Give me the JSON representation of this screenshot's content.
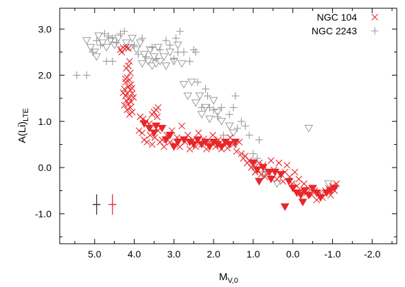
{
  "chart_data": {
    "type": "scatter",
    "title": "",
    "xlabel": "M",
    "xlabel_sub": "V,0",
    "ylabel": "A(Li)",
    "ylabel_sub": "LTE",
    "xlim": [
      5.88,
      -2.62
    ],
    "ylim": [
      -1.65,
      3.45
    ],
    "x_reversed": true,
    "x_ticks": [
      5,
      4,
      3,
      2,
      1,
      0,
      -1,
      -2
    ],
    "x_tick_labels": [
      "5.0",
      "4.0",
      "3.0",
      "2.0",
      "1.0",
      "0.0",
      "-1.0",
      "-2.0"
    ],
    "y_ticks": [
      3,
      2,
      1,
      0,
      -1
    ],
    "y_tick_labels": [
      "3.0",
      "2.0",
      "1.0",
      "0.0",
      "-1.0"
    ],
    "grid": false,
    "legend_position": "top-right",
    "series": [
      {
        "name": "NGC 104",
        "color": "#e8272a",
        "marker": "x",
        "upper_limit_marker": "filled-down-triangle",
        "points": [
          [
            4.32,
            2.5
          ],
          [
            4.35,
            2.55
          ],
          [
            4.28,
            2.6
          ],
          [
            4.2,
            2.6
          ],
          [
            4.15,
            2.58
          ],
          [
            4.12,
            2.3
          ],
          [
            4.15,
            2.2
          ],
          [
            4.2,
            2.15
          ],
          [
            4.1,
            2.05
          ],
          [
            4.18,
            1.95
          ],
          [
            4.12,
            1.9
          ],
          [
            4.22,
            1.85
          ],
          [
            4.08,
            1.8
          ],
          [
            4.15,
            1.75
          ],
          [
            4.25,
            1.7
          ],
          [
            4.1,
            1.68
          ],
          [
            4.18,
            1.6
          ],
          [
            4.05,
            1.6
          ],
          [
            4.22,
            1.55
          ],
          [
            4.12,
            1.5
          ],
          [
            4.2,
            1.45
          ],
          [
            4.08,
            1.42
          ],
          [
            4.15,
            1.38
          ],
          [
            4.25,
            1.35
          ],
          [
            4.1,
            1.3
          ],
          [
            4.18,
            1.25
          ],
          [
            4.05,
            1.2
          ],
          [
            4.12,
            1.15
          ],
          [
            4.22,
            1.92
          ],
          [
            4.06,
            1.72
          ],
          [
            4.28,
            1.62
          ],
          [
            4.02,
            1.52
          ],
          [
            3.85,
            1.1
          ],
          [
            3.78,
            1.05
          ],
          [
            3.7,
            1.0
          ],
          [
            3.62,
            0.95
          ],
          [
            3.55,
            1.15
          ],
          [
            3.5,
            1.2
          ],
          [
            3.45,
            1.25
          ],
          [
            3.4,
            1.3
          ],
          [
            3.42,
            1.1
          ],
          [
            3.88,
            0.8
          ],
          [
            3.8,
            0.75
          ],
          [
            3.75,
            0.6
          ],
          [
            3.68,
            0.55
          ],
          [
            3.6,
            0.7
          ],
          [
            3.55,
            0.5
          ],
          [
            3.48,
            0.65
          ],
          [
            3.4,
            0.8
          ],
          [
            3.35,
            0.55
          ],
          [
            3.3,
            0.6
          ],
          [
            3.25,
            0.45
          ],
          [
            3.18,
            0.7
          ],
          [
            3.1,
            0.55
          ],
          [
            3.05,
            0.8
          ],
          [
            2.98,
            0.5
          ],
          [
            2.92,
            0.65
          ],
          [
            2.85,
            0.45
          ],
          [
            2.8,
            0.9
          ],
          [
            2.72,
            0.55
          ],
          [
            2.65,
            0.7
          ],
          [
            2.6,
            0.4
          ],
          [
            2.52,
            0.6
          ],
          [
            2.45,
            0.45
          ],
          [
            2.38,
            0.75
          ],
          [
            2.3,
            0.5
          ],
          [
            2.25,
            0.62
          ],
          [
            2.18,
            0.4
          ],
          [
            2.1,
            0.55
          ],
          [
            2.02,
            0.7
          ],
          [
            1.95,
            0.45
          ],
          [
            1.88,
            0.6
          ],
          [
            1.8,
            0.4
          ],
          [
            1.72,
            0.55
          ],
          [
            1.65,
            0.42
          ],
          [
            1.58,
            0.65
          ],
          [
            1.5,
            0.5
          ],
          [
            1.42,
            0.35
          ],
          [
            1.35,
            0.55
          ],
          [
            1.3,
            0.3
          ],
          [
            1.25,
            0.2
          ],
          [
            1.2,
            0.25
          ],
          [
            1.15,
            0.1
          ],
          [
            1.1,
            0.15
          ],
          [
            1.05,
            0.0
          ],
          [
            1.0,
            0.05
          ],
          [
            0.95,
            -0.1
          ],
          [
            0.9,
            -0.05
          ],
          [
            0.85,
            0.1
          ],
          [
            0.8,
            -0.15
          ],
          [
            0.75,
            0.05
          ],
          [
            0.7,
            -0.2
          ],
          [
            0.62,
            -0.1
          ],
          [
            0.55,
            0.15
          ],
          [
            0.48,
            -0.05
          ],
          [
            0.4,
            -0.25
          ],
          [
            0.35,
            0.1
          ],
          [
            0.3,
            -0.15
          ],
          [
            0.25,
            -0.3
          ],
          [
            0.2,
            -0.1
          ],
          [
            0.15,
            0.05
          ],
          [
            0.08,
            -0.2
          ],
          [
            0.02,
            -0.35
          ],
          [
            -0.05,
            -0.1
          ],
          [
            -0.1,
            -0.4
          ],
          [
            -0.15,
            -0.25
          ],
          [
            -0.22,
            -0.5
          ],
          [
            -0.28,
            -0.35
          ],
          [
            -0.35,
            -0.55
          ],
          [
            -0.4,
            -0.45
          ],
          [
            -0.48,
            -0.6
          ],
          [
            -0.55,
            -0.5
          ],
          [
            -0.6,
            -0.7
          ],
          [
            -0.68,
            -0.55
          ],
          [
            -0.75,
            -0.65
          ],
          [
            -0.82,
            -0.5
          ],
          [
            -0.9,
            -0.45
          ],
          [
            -0.95,
            -0.6
          ],
          [
            -1.0,
            -0.4
          ],
          [
            -1.05,
            -0.5
          ],
          [
            -1.1,
            -0.35
          ]
        ],
        "upper_limits": [
          [
            3.75,
            0.95
          ],
          [
            3.62,
            0.85
          ],
          [
            3.5,
            0.75
          ],
          [
            3.45,
            0.9
          ],
          [
            3.3,
            0.85
          ],
          [
            3.2,
            0.6
          ],
          [
            3.1,
            0.7
          ],
          [
            3.0,
            0.45
          ],
          [
            2.9,
            0.55
          ],
          [
            2.75,
            0.6
          ],
          [
            2.6,
            0.55
          ],
          [
            2.5,
            0.5
          ],
          [
            2.4,
            0.6
          ],
          [
            2.3,
            0.5
          ],
          [
            2.2,
            0.55
          ],
          [
            2.1,
            0.45
          ],
          [
            2.0,
            0.55
          ],
          [
            1.9,
            0.5
          ],
          [
            1.8,
            0.45
          ],
          [
            1.7,
            0.55
          ],
          [
            1.6,
            0.5
          ],
          [
            1.45,
            0.55
          ],
          [
            1.0,
            0.1
          ],
          [
            0.9,
            -0.05
          ],
          [
            0.75,
            0.0
          ],
          [
            0.6,
            -0.1
          ],
          [
            0.45,
            -0.1
          ],
          [
            0.3,
            -0.15
          ],
          [
            0.1,
            -0.3
          ],
          [
            0.0,
            -0.45
          ],
          [
            -0.1,
            -0.55
          ],
          [
            -0.2,
            -0.6
          ],
          [
            -0.3,
            -0.5
          ],
          [
            -0.4,
            -0.6
          ],
          [
            -0.5,
            -0.45
          ],
          [
            -0.6,
            -0.55
          ],
          [
            -0.7,
            -0.65
          ],
          [
            -0.85,
            -0.55
          ],
          [
            -0.95,
            -0.5
          ],
          [
            -1.05,
            -0.45
          ],
          [
            0.55,
            -0.25
          ],
          [
            0.2,
            -0.85
          ],
          [
            0.85,
            -0.3
          ],
          [
            -0.25,
            -0.75
          ]
        ],
        "error_bar": {
          "x": 4.55,
          "y": -0.8,
          "xerr": 0.1,
          "yerr": 0.22
        }
      },
      {
        "name": "NGC 2243",
        "color": "#999999",
        "marker": "+",
        "upper_limit_marker": "open-down-triangle",
        "points": [
          [
            5.45,
            2.0
          ],
          [
            5.2,
            2.0
          ],
          [
            5.05,
            2.5
          ],
          [
            4.95,
            2.75
          ],
          [
            4.85,
            2.65
          ],
          [
            4.75,
            2.9
          ],
          [
            4.65,
            2.85
          ],
          [
            4.55,
            2.8
          ],
          [
            4.45,
            2.7
          ],
          [
            4.35,
            2.9
          ],
          [
            4.25,
            2.95
          ],
          [
            4.0,
            2.65
          ],
          [
            3.9,
            2.45
          ],
          [
            3.8,
            2.8
          ],
          [
            3.7,
            2.4
          ],
          [
            3.55,
            2.6
          ],
          [
            3.45,
            2.35
          ],
          [
            3.2,
            2.75
          ],
          [
            3.1,
            2.65
          ],
          [
            2.95,
            2.8
          ],
          [
            2.85,
            2.95
          ],
          [
            2.75,
            2.5
          ],
          [
            2.6,
            2.3
          ],
          [
            2.5,
            2.55
          ],
          [
            2.45,
            2.5
          ],
          [
            2.4,
            1.85
          ],
          [
            2.3,
            1.3
          ],
          [
            2.2,
            1.7
          ],
          [
            2.15,
            1.55
          ],
          [
            2.1,
            1.3
          ],
          [
            2.0,
            1.25
          ],
          [
            1.9,
            1.1
          ],
          [
            1.8,
            1.3
          ],
          [
            1.75,
            0.7
          ],
          [
            1.6,
            1.15
          ],
          [
            1.5,
            1.3
          ],
          [
            1.45,
            1.55
          ],
          [
            1.3,
            1.0
          ],
          [
            1.2,
            0.9
          ],
          [
            1.1,
            0.7
          ],
          [
            1.0,
            0.3
          ],
          [
            0.9,
            0.2
          ],
          [
            0.85,
            0.6
          ],
          [
            0.7,
            -0.1
          ],
          [
            1.4,
            0.85
          ],
          [
            4.7,
            2.3
          ],
          [
            4.55,
            2.3
          ],
          [
            3.35,
            2.55
          ],
          [
            2.9,
            2.5
          ],
          [
            3.0,
            2.35
          ]
        ],
        "upper_limits": [
          [
            5.2,
            2.75
          ],
          [
            5.1,
            2.6
          ],
          [
            5.0,
            2.5
          ],
          [
            4.9,
            2.85
          ],
          [
            4.8,
            2.7
          ],
          [
            4.7,
            2.6
          ],
          [
            4.6,
            2.75
          ],
          [
            4.5,
            2.65
          ],
          [
            4.4,
            2.8
          ],
          [
            4.3,
            2.55
          ],
          [
            4.2,
            2.7
          ],
          [
            4.1,
            2.6
          ],
          [
            4.05,
            2.8
          ],
          [
            3.95,
            2.55
          ],
          [
            3.85,
            2.7
          ],
          [
            3.8,
            2.25
          ],
          [
            3.75,
            2.45
          ],
          [
            3.65,
            2.3
          ],
          [
            3.6,
            2.55
          ],
          [
            3.55,
            2.2
          ],
          [
            3.5,
            2.4
          ],
          [
            3.45,
            2.25
          ],
          [
            3.35,
            2.3
          ],
          [
            3.25,
            2.4
          ],
          [
            3.2,
            2.2
          ],
          [
            3.1,
            2.5
          ],
          [
            3.0,
            2.3
          ],
          [
            2.9,
            2.65
          ],
          [
            2.8,
            2.25
          ],
          [
            2.75,
            1.8
          ],
          [
            2.65,
            1.55
          ],
          [
            2.55,
            1.85
          ],
          [
            2.45,
            1.4
          ],
          [
            2.35,
            1.55
          ],
          [
            2.3,
            1.15
          ],
          [
            2.2,
            1.3
          ],
          [
            2.1,
            1.05
          ],
          [
            2.0,
            1.45
          ],
          [
            1.9,
            1.2
          ],
          [
            1.8,
            1.0
          ],
          [
            1.6,
            0.9
          ],
          [
            1.5,
            0.75
          ],
          [
            1.0,
            0.05
          ],
          [
            0.75,
            -0.15
          ],
          [
            0.4,
            -0.35
          ],
          [
            -0.9,
            -0.35
          ],
          [
            -0.4,
            0.85
          ],
          [
            1.45,
            0.5
          ],
          [
            4.95,
            2.4
          ],
          [
            3.4,
            2.6
          ]
        ],
        "error_bar": {
          "x": 4.95,
          "y": -0.8,
          "xerr": 0.1,
          "yerr": 0.22
        }
      }
    ]
  }
}
